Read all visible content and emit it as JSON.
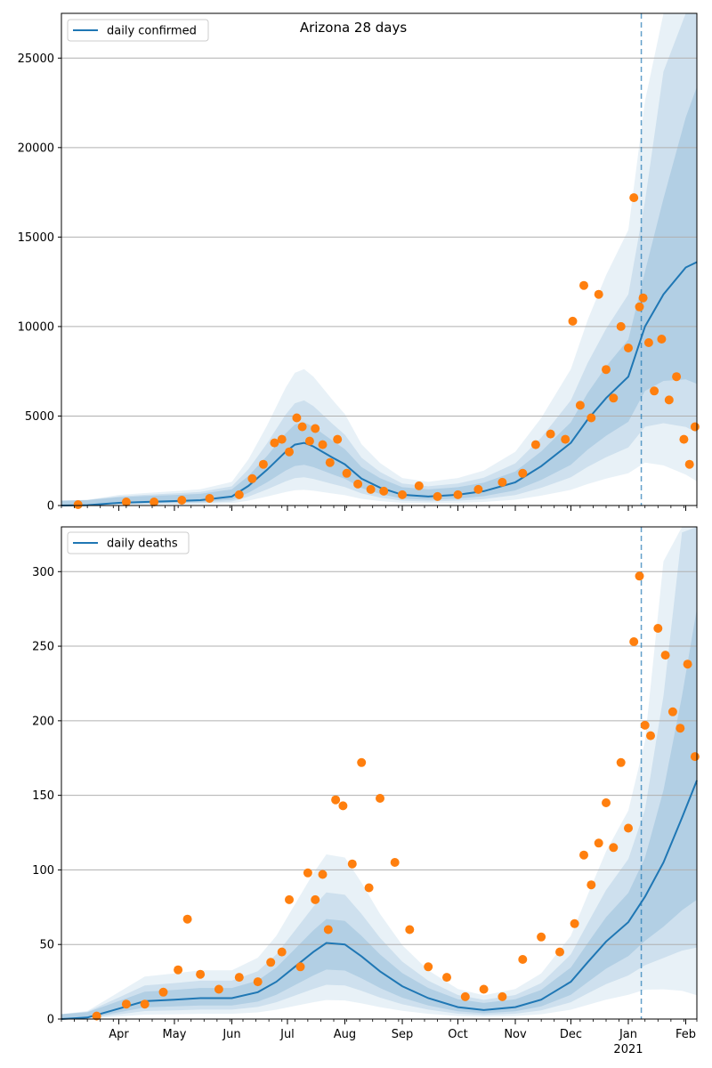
{
  "figure": {
    "title": "Arizona 28 days"
  },
  "colors": {
    "line": "#1f77b4",
    "dots": "#ff7f0e",
    "band": "#1f77b4",
    "grid": "#b0b0b0",
    "vline": "#1f77b4"
  },
  "chart_data": [
    {
      "type": "line",
      "title": "Arizona 28 days",
      "legend": "daily confirmed",
      "legend_location": "upper-left",
      "grid": "horizontal",
      "ylim": [
        0,
        27500
      ],
      "yticks": [
        0,
        5000,
        10000,
        15000,
        20000,
        25000
      ],
      "ytick_labels": [
        "0",
        "5000",
        "10000",
        "15000",
        "20000",
        "25000"
      ],
      "xlim": [
        "2020-03-01",
        "2021-02-07"
      ],
      "marker_date": "2021-01-08",
      "series": [
        {
          "name": "daily confirmed",
          "style": "line",
          "x": [
            "2020-03-01",
            "2020-03-15",
            "2020-04-01",
            "2020-04-15",
            "2020-05-01",
            "2020-05-15",
            "2020-06-01",
            "2020-06-10",
            "2020-06-20",
            "2020-06-30",
            "2020-07-05",
            "2020-07-10",
            "2020-07-15",
            "2020-07-20",
            "2020-07-25",
            "2020-08-01",
            "2020-08-10",
            "2020-08-20",
            "2020-09-01",
            "2020-09-15",
            "2020-10-01",
            "2020-10-15",
            "2020-11-01",
            "2020-11-15",
            "2020-12-01",
            "2020-12-10",
            "2020-12-20",
            "2021-01-01",
            "2021-01-10",
            "2021-01-20",
            "2021-02-01",
            "2021-02-07"
          ],
          "values": [
            0,
            20,
            150,
            200,
            250,
            300,
            500,
            1100,
            2000,
            3000,
            3400,
            3500,
            3300,
            3000,
            2700,
            2300,
            1500,
            1000,
            600,
            500,
            600,
            800,
            1300,
            2200,
            3500,
            4800,
            6000,
            7200,
            10000,
            11800,
            13300,
            13600
          ]
        },
        {
          "name": "daily confirmed (observed)",
          "style": "dots",
          "x": [
            "2020-03-10",
            "2020-04-05",
            "2020-04-20",
            "2020-05-05",
            "2020-05-20",
            "2020-06-05",
            "2020-06-12",
            "2020-06-18",
            "2020-06-24",
            "2020-06-28",
            "2020-07-02",
            "2020-07-06",
            "2020-07-09",
            "2020-07-13",
            "2020-07-16",
            "2020-07-20",
            "2020-07-24",
            "2020-07-28",
            "2020-08-02",
            "2020-08-08",
            "2020-08-15",
            "2020-08-22",
            "2020-09-01",
            "2020-09-10",
            "2020-09-20",
            "2020-10-01",
            "2020-10-12",
            "2020-10-25",
            "2020-11-05",
            "2020-11-12",
            "2020-11-20",
            "2020-11-28",
            "2020-12-02",
            "2020-12-06",
            "2020-12-08",
            "2020-12-12",
            "2020-12-16",
            "2020-12-20",
            "2020-12-24",
            "2020-12-28",
            "2021-01-01",
            "2021-01-04",
            "2021-01-07",
            "2021-01-09",
            "2021-01-12",
            "2021-01-15",
            "2021-01-19",
            "2021-01-23",
            "2021-01-27",
            "2021-01-31",
            "2021-02-03",
            "2021-02-06"
          ],
          "values": [
            50,
            200,
            200,
            300,
            400,
            600,
            1500,
            2300,
            3500,
            3700,
            3000,
            4900,
            4400,
            3600,
            4300,
            3400,
            2400,
            3700,
            1800,
            1200,
            900,
            800,
            600,
            1100,
            500,
            600,
            900,
            1300,
            1800,
            3400,
            4000,
            3700,
            10300,
            5600,
            12300,
            4900,
            11800,
            7600,
            6000,
            10000,
            8800,
            17200,
            11100,
            11600,
            9100,
            6400,
            9300,
            5900,
            7200,
            3700,
            2300,
            4400
          ]
        }
      ]
    },
    {
      "type": "line",
      "legend": "daily deaths",
      "legend_location": "upper-left",
      "grid": "horizontal",
      "ylim": [
        0,
        330
      ],
      "yticks": [
        0,
        50,
        100,
        150,
        200,
        250,
        300
      ],
      "ytick_labels": [
        "0",
        "50",
        "100",
        "150",
        "200",
        "250",
        "300"
      ],
      "xlim": [
        "2020-03-01",
        "2021-02-07"
      ],
      "xticks": [
        "2020-04-01",
        "2020-05-01",
        "2020-06-01",
        "2020-07-01",
        "2020-08-01",
        "2020-09-01",
        "2020-10-01",
        "2020-11-01",
        "2020-12-01",
        "2021-01-01",
        "2021-02-01"
      ],
      "xtick_labels": [
        "Apr",
        "May",
        "Jun",
        "Jul",
        "Aug",
        "Sep",
        "Oct",
        "Nov",
        "Dec",
        "Jan",
        "Feb"
      ],
      "xtick_sublabels": [
        "",
        "",
        "",
        "",
        "",
        "",
        "",
        "",
        "",
        "2021",
        ""
      ],
      "marker_date": "2021-01-08",
      "series": [
        {
          "name": "daily deaths",
          "style": "line",
          "x": [
            "2020-03-01",
            "2020-03-15",
            "2020-04-01",
            "2020-04-15",
            "2020-05-01",
            "2020-05-15",
            "2020-06-01",
            "2020-06-15",
            "2020-06-25",
            "2020-07-05",
            "2020-07-15",
            "2020-07-22",
            "2020-08-01",
            "2020-08-10",
            "2020-08-20",
            "2020-09-01",
            "2020-09-15",
            "2020-10-01",
            "2020-10-15",
            "2020-11-01",
            "2020-11-15",
            "2020-12-01",
            "2020-12-10",
            "2020-12-20",
            "2021-01-01",
            "2021-01-10",
            "2021-01-20",
            "2021-01-30",
            "2021-02-07"
          ],
          "values": [
            0,
            1,
            7,
            12,
            13,
            14,
            14,
            18,
            25,
            35,
            45,
            51,
            50,
            42,
            32,
            22,
            14,
            8,
            6,
            8,
            13,
            25,
            38,
            52,
            65,
            82,
            105,
            135,
            160
          ]
        },
        {
          "name": "daily deaths (observed)",
          "style": "dots",
          "x": [
            "2020-03-20",
            "2020-04-05",
            "2020-04-15",
            "2020-04-25",
            "2020-05-03",
            "2020-05-08",
            "2020-05-15",
            "2020-05-25",
            "2020-06-05",
            "2020-06-15",
            "2020-06-22",
            "2020-06-28",
            "2020-07-02",
            "2020-07-08",
            "2020-07-12",
            "2020-07-16",
            "2020-07-20",
            "2020-07-23",
            "2020-07-27",
            "2020-07-31",
            "2020-08-05",
            "2020-08-10",
            "2020-08-14",
            "2020-08-20",
            "2020-08-28",
            "2020-09-05",
            "2020-09-15",
            "2020-09-25",
            "2020-10-05",
            "2020-10-15",
            "2020-10-25",
            "2020-11-05",
            "2020-11-15",
            "2020-11-25",
            "2020-12-03",
            "2020-12-08",
            "2020-12-12",
            "2020-12-16",
            "2020-12-20",
            "2020-12-24",
            "2020-12-28",
            "2021-01-01",
            "2021-01-04",
            "2021-01-07",
            "2021-01-10",
            "2021-01-13",
            "2021-01-17",
            "2021-01-21",
            "2021-01-25",
            "2021-01-29",
            "2021-02-02",
            "2021-02-06"
          ],
          "values": [
            2,
            10,
            10,
            18,
            33,
            67,
            30,
            20,
            28,
            25,
            38,
            45,
            80,
            35,
            98,
            80,
            97,
            60,
            147,
            143,
            104,
            172,
            88,
            148,
            105,
            60,
            35,
            28,
            15,
            20,
            15,
            40,
            55,
            45,
            64,
            110,
            90,
            118,
            145,
            115,
            172,
            128,
            253,
            297,
            197,
            190,
            262,
            244,
            206,
            195,
            238,
            176
          ]
        }
      ]
    }
  ]
}
